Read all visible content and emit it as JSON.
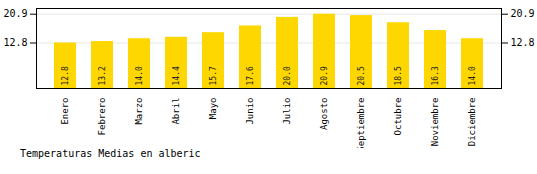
{
  "chart_data": {
    "type": "bar",
    "title": "Temperaturas Medias en alberic",
    "categories": [
      "Enero",
      "Febrero",
      "Marzo",
      "Abril",
      "Mayo",
      "Junio",
      "Julio",
      "Agosto",
      "Septiembre",
      "Octubre",
      "Noviembre",
      "Diciembre"
    ],
    "values": [
      12.8,
      13.2,
      14.0,
      14.4,
      15.7,
      17.6,
      20.0,
      20.9,
      20.5,
      18.5,
      16.3,
      14.0
    ],
    "value_labels": [
      "12.8",
      "13.2",
      "14.0",
      "14.4",
      "15.7",
      "17.6",
      "20.0",
      "20.9",
      "20.5",
      "18.5",
      "16.3",
      "14.0"
    ],
    "color": "#FFD700",
    "ylim": [
      0,
      22.5
    ],
    "yticks": [
      12.8,
      20.9
    ],
    "grid": true,
    "data_labels": true
  }
}
